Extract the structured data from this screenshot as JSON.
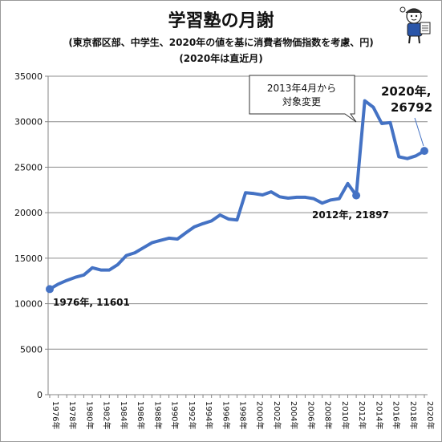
{
  "chart_data": {
    "type": "line",
    "title": "学習塾の月謝",
    "subtitle": "(東京都区部、中学生、2020年の値を基に消費者物価指数を考慮、円)",
    "subtitle2": "(2020年は直近月)",
    "xlabel": "",
    "ylabel": "",
    "ylim": [
      0,
      35000
    ],
    "yticks": [
      0,
      5000,
      10000,
      15000,
      20000,
      25000,
      30000,
      35000
    ],
    "ytick_labels": [
      "0",
      "5000",
      "10000",
      "15000",
      "20000",
      "25000",
      "30000",
      "35000"
    ],
    "xtick_labels": [
      "1976年",
      "1978年",
      "1980年",
      "1982年",
      "1984年",
      "1986年",
      "1988年",
      "1990年",
      "1992年",
      "1994年",
      "1996年",
      "1998年",
      "2000年",
      "2002年",
      "2004年",
      "2006年",
      "2008年",
      "2010年",
      "2012年",
      "2014年",
      "2016年",
      "2018年",
      "2020年"
    ],
    "grid": true,
    "line_color": "#4472c4",
    "x_labels": [
      "1976",
      "1977",
      "1978",
      "1979",
      "1980",
      "1981",
      "1982",
      "1983",
      "1984",
      "1985",
      "1986",
      "1987",
      "1988",
      "1989",
      "1990",
      "1991",
      "1992",
      "1993",
      "1994",
      "1995",
      "1996",
      "1997",
      "1998",
      "1999",
      "2000",
      "2001",
      "2002",
      "2003",
      "2004",
      "2005",
      "2006",
      "2007",
      "2008",
      "2009",
      "2010",
      "2011",
      "2012",
      "2013",
      "2014",
      "2015",
      "2016",
      "2017",
      "2018",
      "2019",
      "2020"
    ],
    "values": [
      11601,
      12150,
      12550,
      12900,
      13150,
      13950,
      13700,
      13700,
      14300,
      15300,
      15600,
      16150,
      16700,
      16950,
      17200,
      17100,
      17800,
      18450,
      18800,
      19100,
      19750,
      19300,
      19200,
      22200,
      22100,
      21950,
      22300,
      21750,
      21600,
      21700,
      21700,
      21550,
      21050,
      21400,
      21550,
      23200,
      21897,
      32300,
      31600,
      29800,
      29900,
      26150,
      25950,
      26250,
      26792
    ],
    "highlight_indices": [
      0,
      36,
      44
    ],
    "annotations": {
      "start": "1976年, 11601",
      "low2012": "2012年, 21897",
      "end_line1": "2020年,",
      "end_line2": "26792",
      "callout_line1": "2013年4月から",
      "callout_line2": "対象変更"
    }
  }
}
